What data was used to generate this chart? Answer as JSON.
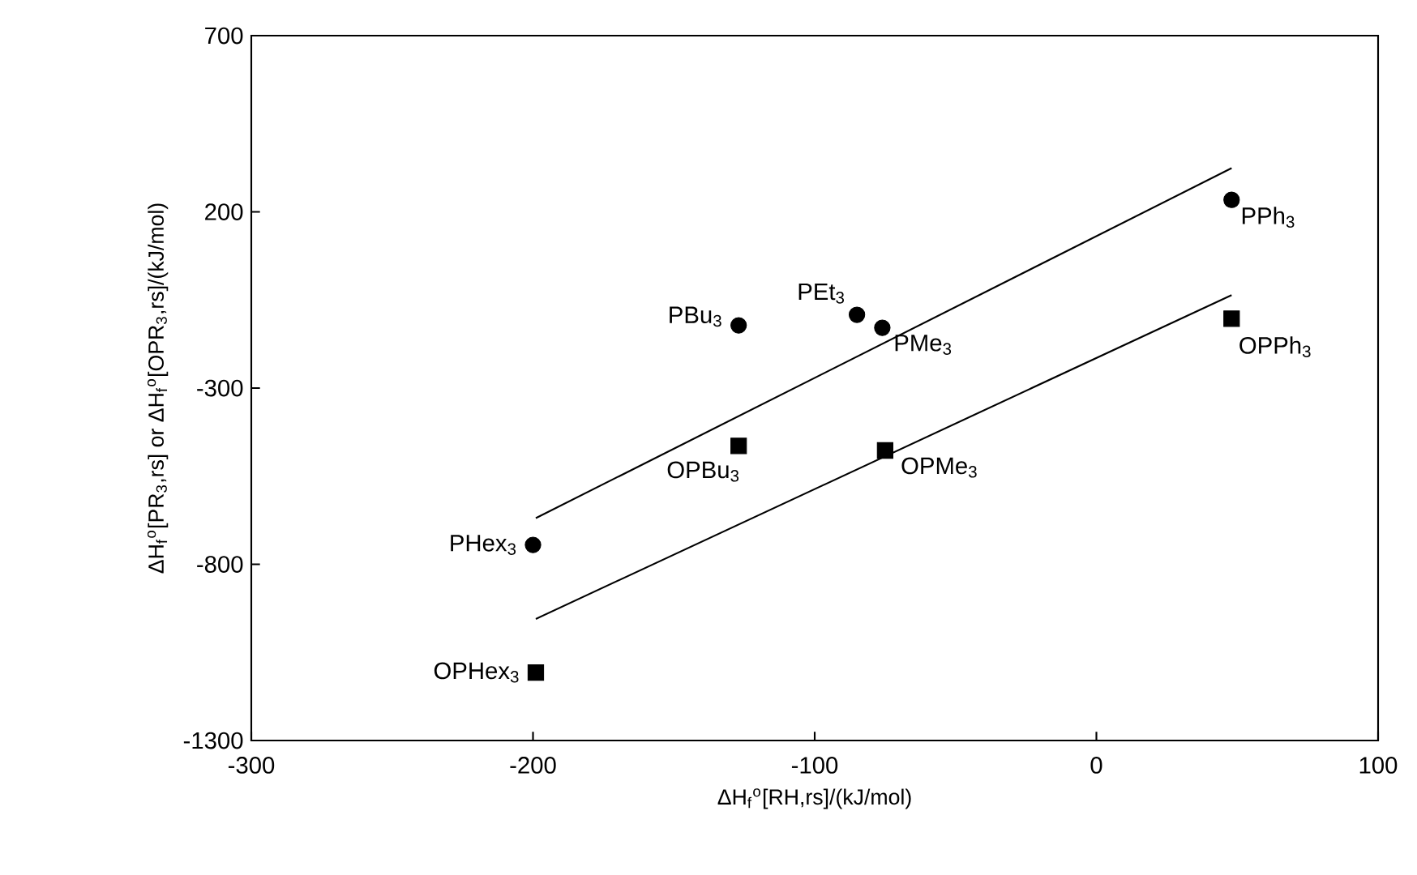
{
  "chart_data": {
    "type": "scatter",
    "xlabel": "ΔH$_{f}$$^{o}$[RH,rs]/(kJ/mol)",
    "ylabel": "ΔH$_{f}$$^{o}$[PR$_{3}$,rs] or ΔH$_{f}$$^{o}$[OPR$_{3}$,rs]/(kJ/mol)",
    "xlim": [
      -300,
      100
    ],
    "xticks": [
      -300,
      -200,
      -100,
      0,
      100
    ],
    "ylim": [
      -1300,
      700
    ],
    "yticks": [
      -1300,
      -800,
      -300,
      200,
      700
    ],
    "grid": false,
    "series": [
      {
        "marker": "circle",
        "color": "#000000",
        "x": [
          48,
          -127,
          -85,
          -76,
          -200
        ],
        "values": [
          234,
          -122,
          -92,
          -129,
          -745
        ]
      },
      {
        "marker": "square",
        "color": "#000000",
        "x": [
          48,
          -127,
          -75,
          -199
        ],
        "values": [
          -103,
          -464,
          -477,
          -1107
        ]
      },
      {
        "type": "line",
        "marker": "none",
        "line_style": "solid",
        "color": "#000000",
        "x": [
          -199,
          48
        ],
        "values": [
          -669,
          324
        ]
      },
      {
        "type": "line",
        "marker": "none",
        "line_style": "solid",
        "color": "#000000",
        "x": [
          -199,
          48
        ],
        "values": [
          -955,
          -36
        ]
      }
    ],
    "annotations": [
      {
        "text": "PPh$_{3}$",
        "x": 48,
        "y": 234
      },
      {
        "text": "PBu$_{3}$",
        "x": -127,
        "y": -122
      },
      {
        "text": "PEt$_{3}$",
        "x": -85,
        "y": -92
      },
      {
        "text": "PMe$_{3}$",
        "x": -76,
        "y": -129
      },
      {
        "text": "PHex$_{3}$",
        "x": -200,
        "y": -745
      },
      {
        "text": "OPPh$_{3}$",
        "x": 48,
        "y": -103
      },
      {
        "text": "OPBu$_{3}$",
        "x": -127,
        "y": -464
      },
      {
        "text": "OPMe$_{3}$",
        "x": -75,
        "y": -477
      },
      {
        "text": "OPHex$_{3}$",
        "x": -199,
        "y": -1107
      }
    ]
  }
}
